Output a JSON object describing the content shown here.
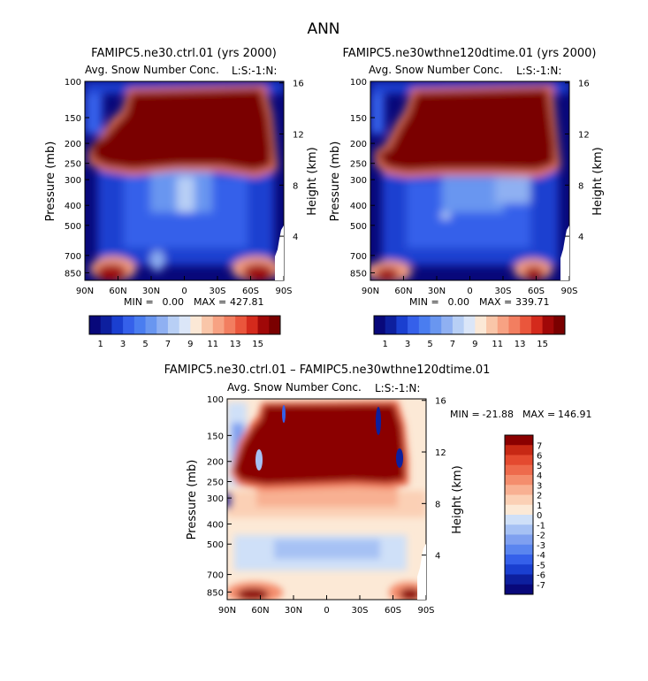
{
  "page_title": "ANN",
  "colors": {
    "top_ramp": [
      "#08087a",
      "#0d1f9e",
      "#1a3fd0",
      "#3560ea",
      "#4a7df0",
      "#6996f0",
      "#8fb0f2",
      "#b8cff5",
      "#dbe6f8",
      "#fbe8d6",
      "#f9c6a9",
      "#f7a283",
      "#f27e60",
      "#ea563c",
      "#d42a1c",
      "#a00808",
      "#7a0000"
    ],
    "diff_ramp": [
      "#08087a",
      "#0d1f9e",
      "#1a3fd0",
      "#3560ea",
      "#5a85ef",
      "#7fa0f0",
      "#a6c1f4",
      "#cfe0f8",
      "#fce9d6",
      "#fbd0b5",
      "#f8b092",
      "#f48d6d",
      "#ee6a4c",
      "#e44a2f",
      "#c72814",
      "#8b0000"
    ]
  },
  "chart_data": [
    {
      "type": "heatmap",
      "id": "ctrl",
      "title": "FAMIPC5.ne30.ctrl.01 (yrs 2000)",
      "subtitle": "Avg. Snow Number Conc.",
      "right_label": "L:S:-1:N:",
      "ylabel": "Pressure (mb)",
      "ylabel_right": "Height (km)",
      "x_ticks": [
        "90N",
        "60N",
        "30N",
        "0",
        "30S",
        "60S",
        "90S"
      ],
      "y_ticks": [
        "100",
        "150",
        "200",
        "250",
        "300",
        "400",
        "500",
        "700",
        "850"
      ],
      "y_ticks_right": [
        "16",
        "12",
        "8",
        "4"
      ],
      "min_label": "MIN =",
      "min_value": "0.00",
      "max_label": "MAX =",
      "max_value": "427.81",
      "colorbar_labels": [
        "1",
        "3",
        "5",
        "7",
        "9",
        "11",
        "13",
        "15"
      ]
    },
    {
      "type": "heatmap",
      "id": "exp",
      "title": "FAMIPC5.ne30wthne120dtime.01 (yrs 2000)",
      "subtitle": "Avg. Snow Number Conc.",
      "right_label": "L:S:-1:N:",
      "ylabel": "Pressure (mb)",
      "ylabel_right": "Height (km)",
      "x_ticks": [
        "90N",
        "60N",
        "30N",
        "0",
        "30S",
        "60S",
        "90S"
      ],
      "y_ticks": [
        "100",
        "150",
        "200",
        "250",
        "300",
        "400",
        "500",
        "700",
        "850"
      ],
      "y_ticks_right": [
        "16",
        "12",
        "8",
        "4"
      ],
      "min_label": "MIN =",
      "min_value": "0.00",
      "max_label": "MAX =",
      "max_value": "339.71",
      "colorbar_labels": [
        "1",
        "3",
        "5",
        "7",
        "9",
        "11",
        "13",
        "15"
      ]
    },
    {
      "type": "heatmap",
      "id": "diff",
      "title": "FAMIPC5.ne30.ctrl.01 – FAMIPC5.ne30wthne120dtime.01",
      "subtitle": "Avg. Snow Number Conc.",
      "right_label": "L:S:-1:N:",
      "ylabel": "Pressure (mb)",
      "ylabel_right": "Height (km)",
      "x_ticks": [
        "90N",
        "60N",
        "30N",
        "0",
        "30S",
        "60S",
        "90S"
      ],
      "y_ticks": [
        "100",
        "150",
        "200",
        "250",
        "300",
        "400",
        "500",
        "700",
        "850"
      ],
      "y_ticks_right": [
        "16",
        "12",
        "8",
        "4"
      ],
      "min_label": "MIN =",
      "min_value": "-21.88",
      "max_label": "MAX =",
      "max_value": "146.91",
      "colorbar_labels": [
        "7",
        "6",
        "5",
        "4",
        "3",
        "2",
        "1",
        "0",
        "-1",
        "-2",
        "-3",
        "-4",
        "-5",
        "-6",
        "-7"
      ]
    }
  ]
}
